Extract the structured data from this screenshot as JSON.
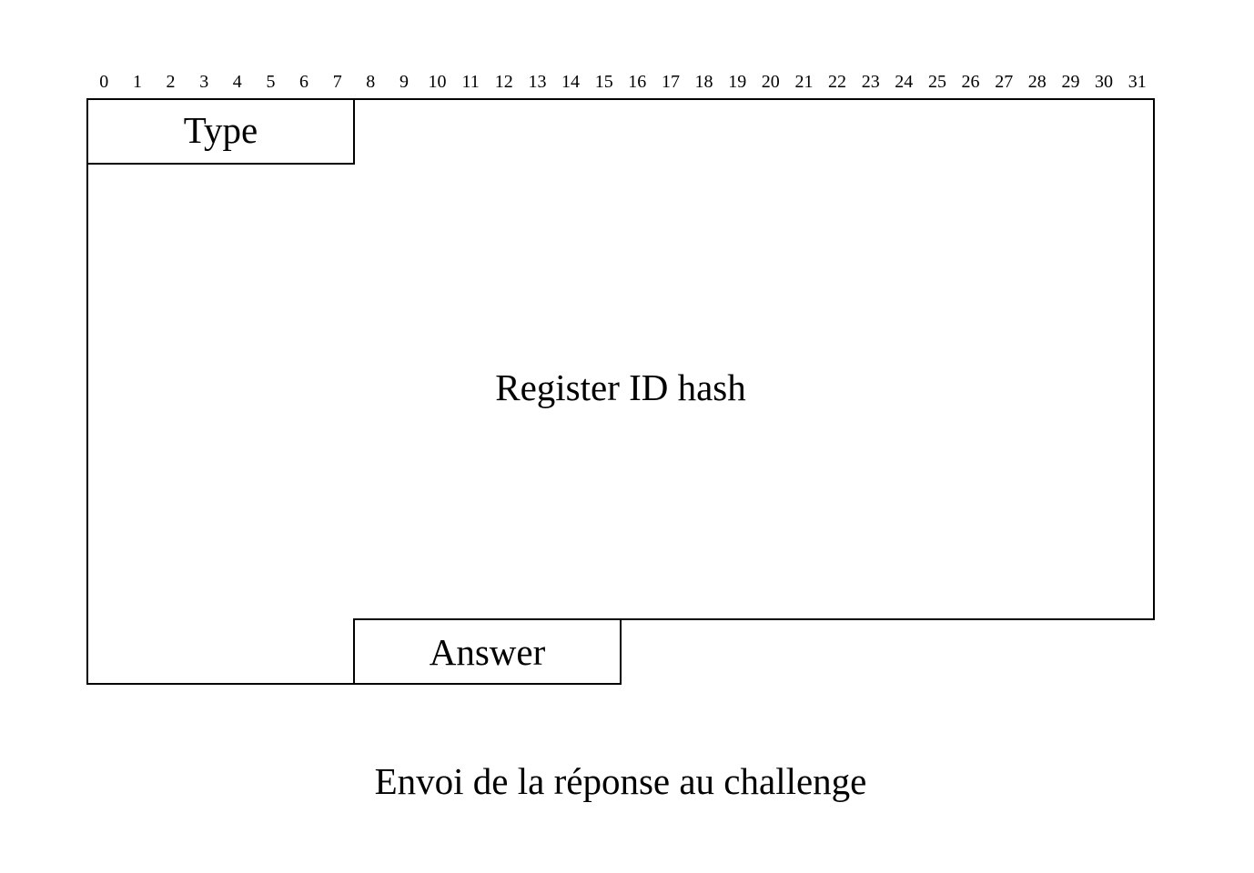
{
  "diagram": {
    "word_bits": 32,
    "bit_numbers": [
      "0",
      "1",
      "2",
      "3",
      "4",
      "5",
      "6",
      "7",
      "8",
      "9",
      "10",
      "11",
      "12",
      "13",
      "14",
      "15",
      "16",
      "17",
      "18",
      "19",
      "20",
      "21",
      "22",
      "23",
      "24",
      "25",
      "26",
      "27",
      "28",
      "29",
      "30",
      "31"
    ],
    "fields": {
      "type": {
        "label": "Type",
        "start_bit": 0,
        "bits": 8
      },
      "register_id_hash": {
        "label": "Register ID hash",
        "start_bit": 8,
        "end_bit": 7
      },
      "answer": {
        "label": "Answer",
        "start_bit": 8,
        "bits": 8
      }
    },
    "caption": "Envoi de la réponse au challenge"
  }
}
